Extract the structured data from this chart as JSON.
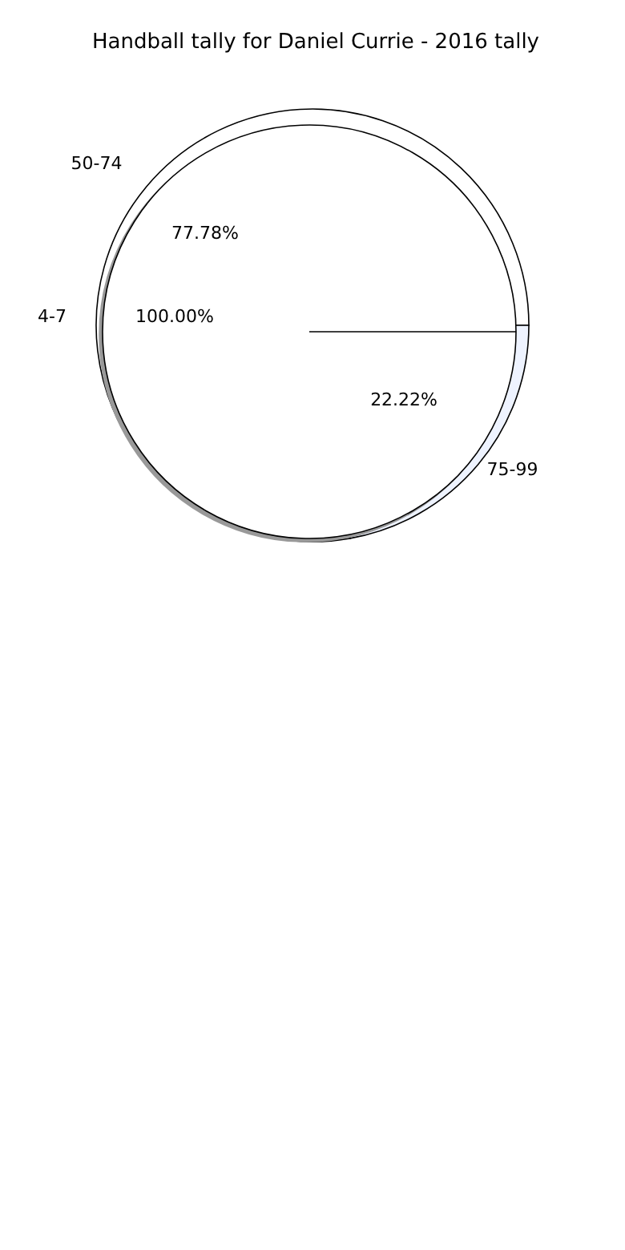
{
  "chart_data": [
    {
      "type": "pie",
      "title": "Handball tally for Daniel Currie - 2016 tally",
      "categories": [
        "4-7"
      ],
      "values": [
        100
      ],
      "colors": [
        "#ffffff"
      ],
      "value_labels": [
        "100.00%"
      ]
    },
    {
      "type": "pie",
      "categories": [
        "50-74",
        "75-99"
      ],
      "values": [
        77.78,
        22.22
      ],
      "colors": [
        "#ffffff",
        "#eef3ff"
      ],
      "value_labels": [
        "77.78%",
        "22.22%"
      ]
    }
  ]
}
